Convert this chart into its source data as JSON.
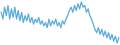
{
  "values": [
    32,
    28,
    35,
    30,
    36,
    28,
    34,
    29,
    35,
    28,
    33,
    27,
    32,
    26,
    30,
    27,
    31,
    26,
    29,
    25,
    28,
    26,
    29,
    25,
    27,
    24,
    26,
    23,
    28,
    24,
    27,
    25,
    28,
    24,
    26,
    23,
    27,
    25,
    28,
    30,
    33,
    35,
    32,
    36,
    33,
    37,
    34,
    38,
    35,
    36,
    32,
    34,
    30,
    28,
    25,
    22,
    20,
    23,
    19,
    22,
    18,
    21,
    17,
    20,
    16,
    19,
    15,
    18,
    14,
    17
  ],
  "line_color": "#5aabdc",
  "background_color": "#ffffff",
  "linewidth": 0.9
}
